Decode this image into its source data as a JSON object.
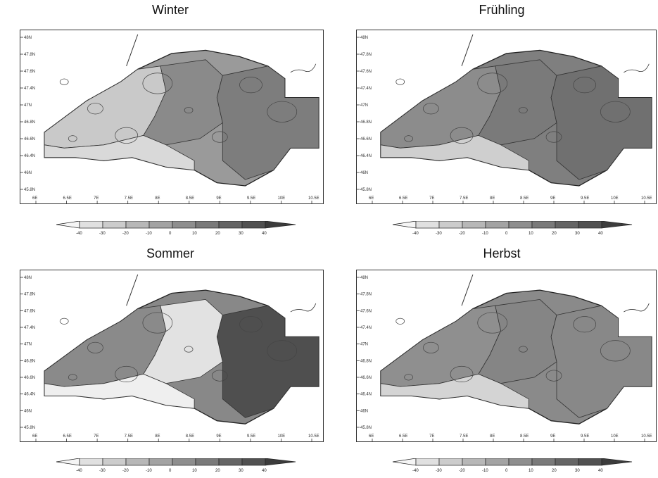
{
  "chart_data": [
    {
      "type": "heatmap",
      "title": "Winter",
      "fill": "#9a9a9a",
      "regions": [
        {
          "name": "west",
          "shade": "#c9c9c9"
        },
        {
          "name": "center",
          "shade": "#8a8a8a"
        },
        {
          "name": "east",
          "shade": "#7d7d7d"
        },
        {
          "name": "southwest",
          "shade": "#d9d9d9"
        }
      ],
      "y_ticks": [
        "48N",
        "47.8N",
        "47.6N",
        "47.4N",
        "47N",
        "46.8N",
        "46.6N",
        "46.4N",
        "46N",
        "45.8N"
      ],
      "x_ticks": [
        "6E",
        "6.5E",
        "7E",
        "7.5E",
        "8E",
        "8.5E",
        "9E",
        "9.5E",
        "10E",
        "10.5E"
      ],
      "colorbar_labels": [
        "-40",
        "-30",
        "-20",
        "-10",
        "0",
        "10",
        "20",
        "30",
        "40"
      ]
    },
    {
      "type": "heatmap",
      "title": "Frühling",
      "fill": "#7f7f7f",
      "regions": [
        {
          "name": "west",
          "shade": "#8c8c8c"
        },
        {
          "name": "center",
          "shade": "#7a7a7a"
        },
        {
          "name": "east",
          "shade": "#707070"
        },
        {
          "name": "southwest",
          "shade": "#cfcfcf"
        }
      ],
      "y_ticks": [
        "48N",
        "47.8N",
        "47.6N",
        "47.4N",
        "47N",
        "46.8N",
        "46.6N",
        "46.4N",
        "46N",
        "45.8N"
      ],
      "x_ticks": [
        "6E",
        "6.5E",
        "7E",
        "7.5E",
        "8E",
        "8.5E",
        "9E",
        "9.5E",
        "10E",
        "10.5E"
      ],
      "colorbar_labels": [
        "-40",
        "-30",
        "-20",
        "-10",
        "0",
        "10",
        "20",
        "30",
        "40"
      ]
    },
    {
      "type": "heatmap",
      "title": "Sommer",
      "fill": "#888888",
      "regions": [
        {
          "name": "west",
          "shade": "#8a8a8a"
        },
        {
          "name": "center",
          "shade": "#e2e2e2"
        },
        {
          "name": "east",
          "shade": "#4f4f4f"
        },
        {
          "name": "southwest",
          "shade": "#efefef"
        }
      ],
      "y_ticks": [
        "48N",
        "47.8N",
        "47.6N",
        "47.4N",
        "47N",
        "46.8N",
        "46.6N",
        "46.4N",
        "46N",
        "45.8N"
      ],
      "x_ticks": [
        "6E",
        "6.5E",
        "7E",
        "7.5E",
        "8E",
        "8.5E",
        "9E",
        "9.5E",
        "10E",
        "10.5E"
      ],
      "colorbar_labels": [
        "-40",
        "-30",
        "-20",
        "-10",
        "0",
        "10",
        "20",
        "30",
        "40"
      ]
    },
    {
      "type": "heatmap",
      "title": "Herbst",
      "fill": "#8a8a8a",
      "regions": [
        {
          "name": "west",
          "shade": "#8f8f8f"
        },
        {
          "name": "center",
          "shade": "#858585"
        },
        {
          "name": "east",
          "shade": "#888888"
        },
        {
          "name": "southwest",
          "shade": "#d4d4d4"
        }
      ],
      "y_ticks": [
        "48N",
        "47.8N",
        "47.6N",
        "47.4N",
        "47N",
        "46.8N",
        "46.6N",
        "46.4N",
        "46N",
        "45.8N"
      ],
      "x_ticks": [
        "6E",
        "6.5E",
        "7E",
        "7.5E",
        "8E",
        "8.5E",
        "9E",
        "9.5E",
        "10E",
        "10.5E"
      ],
      "colorbar_labels": [
        "-40",
        "-30",
        "-20",
        "-10",
        "0",
        "10",
        "20",
        "30",
        "40"
      ]
    }
  ]
}
